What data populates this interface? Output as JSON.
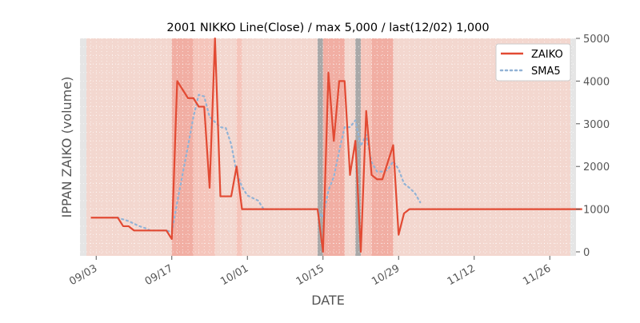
{
  "chart_data": {
    "type": "line",
    "title": "2001 NIKKO Line(Close) / max 5,000 / last(12/02) 1,000",
    "xlabel": "DATE",
    "ylabel": "IPPAN ZAIKO (volume)",
    "ylim": [
      0,
      5000
    ],
    "y_ticks": [
      0,
      1000,
      2000,
      3000,
      4000,
      5000
    ],
    "y_axis_side": "right",
    "x_ticks": [
      "09/03",
      "09/17",
      "10/01",
      "10/15",
      "10/29",
      "11/12",
      "11/26"
    ],
    "grid": true,
    "legend_position": "upper right",
    "colors": {
      "zaiko": "#e24a33",
      "sma5": "#92b3d6",
      "plot_bg": "#f3d7cf",
      "band_light": "#f5c5bb",
      "band_mid": "#f1aea3",
      "band_gray": "#a8a8a8",
      "edge_gray": "#e5e5e5"
    },
    "series": [
      {
        "name": "ZAIKO",
        "style": "solid",
        "x": [
          "2001-09-02",
          "2001-09-03",
          "2001-09-04",
          "2001-09-05",
          "2001-09-06",
          "2001-09-07",
          "2001-09-08",
          "2001-09-09",
          "2001-09-10",
          "2001-09-11",
          "2001-09-12",
          "2001-09-13",
          "2001-09-14",
          "2001-09-15",
          "2001-09-16",
          "2001-09-17",
          "2001-09-18",
          "2001-09-19",
          "2001-09-20",
          "2001-09-21",
          "2001-09-22",
          "2001-09-23",
          "2001-09-24",
          "2001-09-25",
          "2001-09-26",
          "2001-09-27",
          "2001-09-28",
          "2001-09-29",
          "2001-09-30",
          "2001-10-01",
          "2001-10-02",
          "2001-10-03",
          "2001-10-04",
          "2001-10-05",
          "2001-10-06",
          "2001-10-07",
          "2001-10-08",
          "2001-10-09",
          "2001-10-10",
          "2001-10-11",
          "2001-10-12",
          "2001-10-13",
          "2001-10-14",
          "2001-10-15",
          "2001-10-16",
          "2001-10-17",
          "2001-10-18",
          "2001-10-19",
          "2001-10-20",
          "2001-10-21",
          "2001-10-22",
          "2001-10-23",
          "2001-10-24",
          "2001-10-25",
          "2001-10-26",
          "2001-10-27",
          "2001-10-28",
          "2001-10-29",
          "2001-10-30",
          "2001-10-31",
          "2001-11-01",
          "2001-11-02",
          "2001-11-03",
          "2001-11-04",
          "2001-11-05",
          "2001-11-06",
          "2001-11-07",
          "2001-11-08",
          "2001-11-09",
          "2001-11-10",
          "2001-11-11",
          "2001-11-12",
          "2001-11-13",
          "2001-11-14",
          "2001-11-15",
          "2001-11-16",
          "2001-11-17",
          "2001-11-18",
          "2001-11-19",
          "2001-11-20",
          "2001-11-21",
          "2001-11-22",
          "2001-11-23",
          "2001-11-24",
          "2001-11-25",
          "2001-11-26",
          "2001-11-27",
          "2001-11-28",
          "2001-11-29",
          "2001-11-30",
          "2001-12-01",
          "2001-12-02"
        ],
        "values": [
          800,
          800,
          800,
          800,
          800,
          800,
          600,
          600,
          500,
          500,
          500,
          500,
          500,
          500,
          500,
          300,
          4000,
          3800,
          3600,
          3600,
          3400,
          3400,
          1500,
          5000,
          1300,
          1300,
          1300,
          2000,
          1000,
          1000,
          1000,
          1000,
          1000,
          1000,
          1000,
          1000,
          1000,
          1000,
          1000,
          1000,
          1000,
          1000,
          1000,
          0,
          4200,
          2600,
          4000,
          4000,
          1800,
          2600,
          0,
          3300,
          1800,
          1700,
          1700,
          2100,
          2500,
          400,
          900,
          1000,
          1000,
          1000,
          1000,
          1000,
          1000,
          1000,
          1000,
          1000,
          1000,
          1000,
          1000,
          1000,
          1000,
          1000,
          1000,
          1000,
          1000,
          1000,
          1000,
          1000,
          1000,
          1000,
          1000,
          1000,
          1000,
          1000,
          1000,
          1000,
          1000,
          1000,
          1000,
          1000
        ]
      },
      {
        "name": "SMA5",
        "style": "dotted",
        "x": [
          "2001-09-06",
          "2001-09-07",
          "2001-09-08",
          "2001-09-09",
          "2001-09-10",
          "2001-09-11",
          "2001-09-12",
          "2001-09-13",
          "2001-09-14",
          "2001-09-15",
          "2001-09-16",
          "2001-09-17",
          "2001-09-18",
          "2001-09-19",
          "2001-09-20",
          "2001-09-21",
          "2001-09-22",
          "2001-09-23",
          "2001-09-24",
          "2001-09-25",
          "2001-09-26",
          "2001-09-27",
          "2001-09-28",
          "2001-09-29",
          "2001-09-30",
          "2001-10-01",
          "2001-10-02",
          "2001-10-03",
          "2001-10-04",
          "2001-10-05",
          "2001-10-06",
          "2001-10-07",
          "2001-10-08",
          "2001-10-09",
          "2001-10-10",
          "2001-10-11",
          "2001-10-12",
          "2001-10-13",
          "2001-10-14",
          "2001-10-15",
          "2001-10-16",
          "2001-10-17",
          "2001-10-18",
          "2001-10-19",
          "2001-10-20",
          "2001-10-21",
          "2001-10-22",
          "2001-10-23",
          "2001-10-24",
          "2001-10-25",
          "2001-10-26",
          "2001-10-27",
          "2001-10-28",
          "2001-10-29",
          "2001-10-30",
          "2001-10-31",
          "2001-11-01",
          "2001-11-02"
        ],
        "values": [
          800,
          800,
          760,
          720,
          660,
          600,
          560,
          500,
          500,
          500,
          500,
          460,
          1160,
          1820,
          2480,
          3160,
          3680,
          3640,
          3160,
          3040,
          2920,
          2900,
          2520,
          1860,
          1520,
          1320,
          1260,
          1200,
          1000,
          1000,
          1000,
          1000,
          1000,
          1000,
          1000,
          1000,
          1000,
          1000,
          1000,
          800,
          1440,
          1760,
          2360,
          2920,
          2920,
          3080,
          2480,
          2740,
          2100,
          1880,
          1880,
          1920,
          2120,
          1940,
          1600,
          1500,
          1380,
          1160
        ]
      }
    ],
    "bands": [
      {
        "start": "2001-09-17",
        "end": "2001-09-21",
        "shade": "band_mid"
      },
      {
        "start": "2001-09-21",
        "end": "2001-09-25",
        "shade": "band_light"
      },
      {
        "start": "2001-09-29",
        "end": "2001-09-30",
        "shade": "band_light"
      },
      {
        "start": "2001-10-14",
        "end": "2001-10-15",
        "shade": "band_gray"
      },
      {
        "start": "2001-10-15",
        "end": "2001-10-19",
        "shade": "band_mid"
      },
      {
        "start": "2001-10-21",
        "end": "2001-10-22",
        "shade": "band_gray"
      },
      {
        "start": "2001-10-22",
        "end": "2001-10-24",
        "shade": "band_light"
      },
      {
        "start": "2001-10-24",
        "end": "2001-10-28",
        "shade": "band_mid"
      }
    ]
  }
}
